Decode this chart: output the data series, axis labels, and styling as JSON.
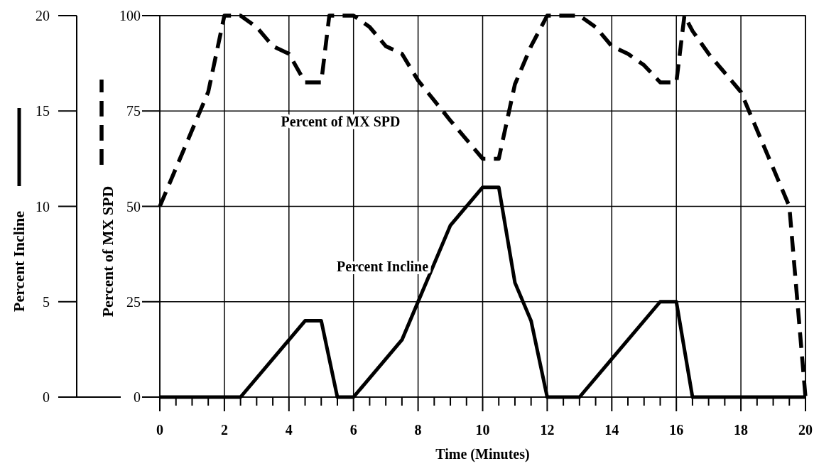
{
  "chart_data": {
    "type": "line",
    "xlabel": "Time (Minutes)",
    "ylabel": "Percent Incline",
    "y2label": "Percent of MX SPD",
    "xlim": [
      0,
      20
    ],
    "xticks": [
      0,
      {
        "value": 0.5,
        "label": null
      },
      {
        "value": 1,
        "label": null
      },
      {
        "value": 1.5,
        "label": null
      },
      2,
      {
        "value": 2.5,
        "label": null
      },
      {
        "value": 3,
        "label": null
      },
      {
        "value": 3.5,
        "label": null
      },
      4,
      {
        "value": 4.5,
        "label": null
      },
      {
        "value": 5,
        "label": null
      },
      {
        "value": 5.5,
        "label": null
      },
      6,
      {
        "value": 6.5,
        "label": null
      },
      {
        "value": 7,
        "label": null
      },
      {
        "value": 7.5,
        "label": null
      },
      8,
      {
        "value": 8.5,
        "label": null
      },
      {
        "value": 9,
        "label": null
      },
      {
        "value": 9.5,
        "label": null
      },
      10,
      {
        "value": 10.5,
        "label": null
      },
      {
        "value": 11,
        "label": null
      },
      {
        "value": 11.5,
        "label": null
      },
      12,
      {
        "value": 12.5,
        "label": null
      },
      {
        "value": 13,
        "label": null
      },
      {
        "value": 13.5,
        "label": null
      },
      14,
      {
        "value": 14.5,
        "label": null
      },
      {
        "value": 15,
        "label": null
      },
      {
        "value": 15.5,
        "label": null
      },
      16,
      {
        "value": 16.5,
        "label": null
      },
      {
        "value": 17,
        "label": null
      },
      {
        "value": 17.5,
        "label": null
      },
      18,
      {
        "value": 18.5,
        "label": null
      },
      {
        "value": 19,
        "label": null
      },
      {
        "value": 19.5,
        "label": null
      },
      20
    ],
    "ylim": [
      0,
      20
    ],
    "yticks": [
      0,
      5,
      10,
      15,
      20
    ],
    "y2lim": [
      0,
      100
    ],
    "y2ticks": [
      0,
      25,
      50,
      75,
      100
    ],
    "grid": true,
    "series": [
      {
        "name": "Percent of MX SPD",
        "color": "#000000",
        "axis": "y2",
        "line_style": "dashed",
        "x": [
          0,
          0.5,
          1,
          1.5,
          1.75,
          2,
          2.5,
          3,
          3.5,
          4,
          4.5,
          5,
          5.25,
          6,
          6.5,
          7,
          7.5,
          8,
          9,
          9.5,
          10,
          10.5,
          11,
          11.5,
          12,
          13,
          13.5,
          14,
          14.5,
          15,
          15.5,
          16,
          16.25,
          16.5,
          17,
          17.5,
          18,
          18.5,
          19,
          19.5,
          20
        ],
        "values": [
          50,
          60,
          70,
          80,
          90,
          100,
          100,
          97,
          92,
          90,
          82.5,
          82.5,
          100,
          100,
          97,
          92,
          90,
          83,
          72.5,
          67.5,
          62.5,
          62.5,
          82,
          92,
          100,
          100,
          97,
          92,
          90,
          87,
          82.5,
          82.5,
          100,
          96,
          90,
          85,
          80,
          70,
          60,
          50,
          0
        ]
      },
      {
        "name": "Percent Incline",
        "color": "#000000",
        "axis": "y",
        "line_style": "solid",
        "x": [
          0,
          2.5,
          4.5,
          5,
          5.5,
          6,
          7.5,
          8,
          9,
          10,
          10.5,
          11,
          11.5,
          12,
          13,
          15.5,
          16,
          16.5,
          20
        ],
        "values": [
          0,
          0,
          4,
          4,
          0,
          0,
          3,
          5,
          9,
          11,
          11,
          6,
          4,
          0,
          0,
          5,
          5,
          0,
          0
        ]
      }
    ]
  }
}
